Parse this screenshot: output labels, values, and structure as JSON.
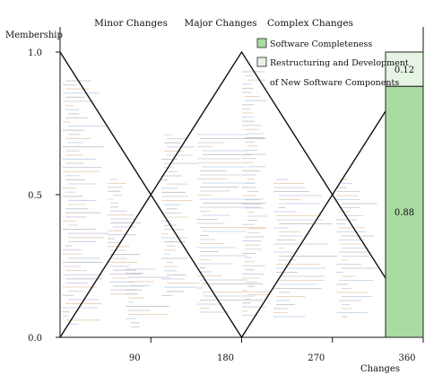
{
  "chart_data": {
    "type": "line",
    "ylabel": "Membership",
    "xlabel": "Changes",
    "y_ticks": [
      "0.0",
      "0.5",
      "1.0"
    ],
    "x_ticks": [
      {
        "value": 90,
        "label": "90"
      },
      {
        "value": 180,
        "label": "180"
      },
      {
        "value": 270,
        "label": "270"
      },
      {
        "value": 360,
        "label": "360"
      }
    ],
    "xlim": [
      0,
      360
    ],
    "ylim": [
      0,
      1
    ],
    "series": [
      {
        "name": "Minor Changes",
        "points": [
          [
            0,
            1
          ],
          [
            180,
            0
          ]
        ]
      },
      {
        "name": "Major Changes",
        "points": [
          [
            0,
            0
          ],
          [
            180,
            1
          ],
          [
            360,
            0
          ]
        ]
      },
      {
        "name": "Complex Changes",
        "points": [
          [
            180,
            0
          ],
          [
            360,
            1
          ]
        ]
      }
    ],
    "legend": {
      "placement": "top-right",
      "entries": [
        {
          "label": "Software Completeness",
          "color": "#a8dca0"
        },
        {
          "label": "Restructuring and Development",
          "color": "#e6f5e3"
        },
        {
          "label": "of New Software Components",
          "color": ""
        }
      ]
    },
    "stacked_bar": {
      "segments": [
        {
          "label": "0.12",
          "value": 0.12,
          "color": "#e6f5e3"
        },
        {
          "label": "0.88",
          "value": 0.88,
          "color": "#a8dca0"
        }
      ]
    }
  }
}
